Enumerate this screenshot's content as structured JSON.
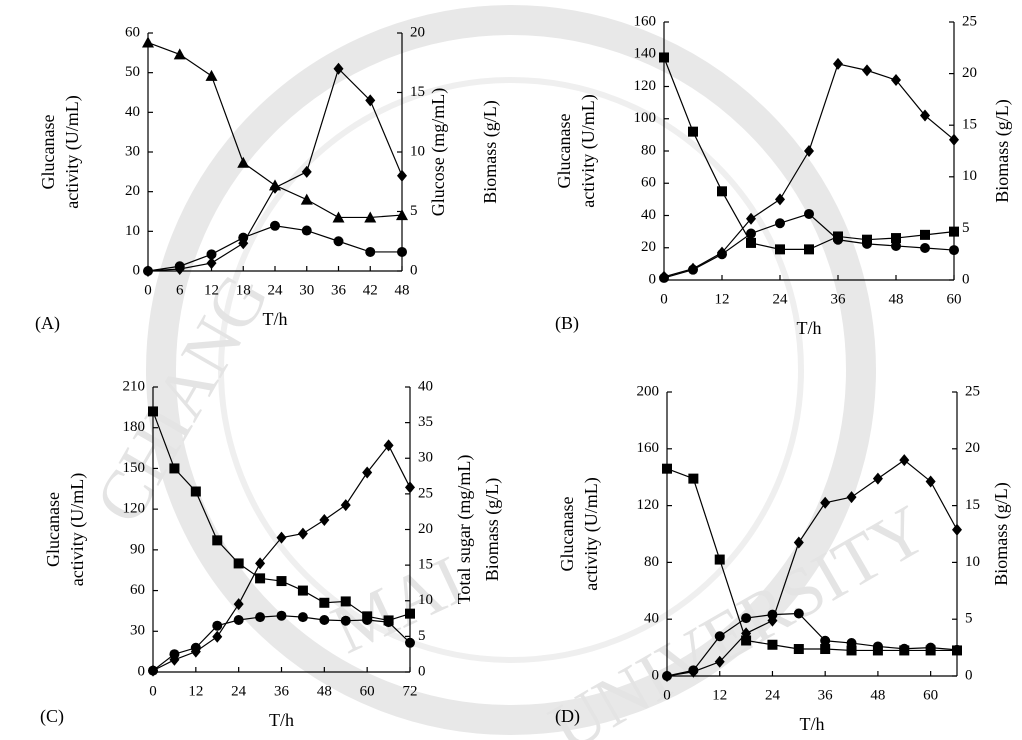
{
  "watermark": [
    "CHIANG",
    "MAI",
    "UNIVERSITY"
  ],
  "chart_data": [
    {
      "type": "line",
      "panel": "(A)",
      "xlabel": "T/h",
      "ylabel": [
        "Glucanase",
        "activity (U/mL)"
      ],
      "y2label": [
        "Glucose (mg/mL)",
        "Biomass (g/L)"
      ],
      "x": [
        0,
        6,
        12,
        18,
        24,
        30,
        36,
        42,
        48
      ],
      "xlim": [
        0,
        48
      ],
      "xticks": [
        0,
        6,
        12,
        18,
        24,
        30,
        36,
        42,
        48
      ],
      "ylim": [
        0,
        60
      ],
      "yticks": [
        0,
        10,
        20,
        30,
        40,
        50,
        60
      ],
      "y2lim": [
        0,
        20
      ],
      "y2ticks": [
        0,
        5,
        10,
        15,
        20
      ],
      "series": [
        {
          "marker": "diamond",
          "color": "#000000",
          "values": [
            0,
            0.5,
            2,
            7,
            21,
            25,
            51,
            43,
            24
          ]
        },
        {
          "marker": "triangle",
          "color": "#000000",
          "axis": "y2",
          "values": [
            19.2,
            18.2,
            16.4,
            9.1,
            7.2,
            6.0,
            4.5,
            4.5,
            4.7
          ]
        },
        {
          "marker": "circle",
          "color": "#000000",
          "axis": "y2",
          "values": [
            0,
            0.4,
            1.4,
            2.8,
            3.8,
            3.4,
            2.5,
            1.6,
            1.6
          ]
        }
      ]
    },
    {
      "type": "line",
      "panel": "(B)",
      "xlabel": "T/h",
      "ylabel": [
        "Glucanase",
        "activity (U/mL)"
      ],
      "y2label": [
        "Biomass (g/L)"
      ],
      "x": [
        0,
        6,
        12,
        18,
        24,
        30,
        36,
        42,
        48,
        54,
        60
      ],
      "xlim": [
        0,
        60
      ],
      "xticks": [
        0,
        12,
        24,
        36,
        48,
        60
      ],
      "ylim": [
        0,
        160
      ],
      "yticks": [
        0,
        20,
        40,
        60,
        80,
        100,
        120,
        140,
        160
      ],
      "y2lim": [
        0,
        25
      ],
      "y2ticks": [
        0,
        5,
        10,
        15,
        20,
        25
      ],
      "series": [
        {
          "marker": "square",
          "color": "#000000",
          "values": [
            138,
            92,
            55,
            23,
            19,
            19,
            27,
            25,
            26,
            28,
            30
          ]
        },
        {
          "marker": "diamond",
          "color": "#000000",
          "values": [
            2,
            7,
            17,
            38,
            50,
            80,
            134,
            130,
            124,
            102,
            87
          ]
        },
        {
          "marker": "circle",
          "color": "#000000",
          "axis": "y2",
          "values": [
            0.2,
            1.0,
            2.5,
            4.5,
            5.5,
            6.4,
            3.9,
            3.5,
            3.3,
            3.1,
            2.9
          ]
        }
      ]
    },
    {
      "type": "line",
      "panel": "(C)",
      "xlabel": "T/h",
      "ylabel": [
        "Glucanase",
        "activity (U/mL)"
      ],
      "y2label": [
        "Total sugar (mg/mL)",
        "Biomass (g/L)"
      ],
      "x": [
        0,
        6,
        12,
        18,
        24,
        30,
        36,
        42,
        48,
        54,
        60,
        66,
        72
      ],
      "xlim": [
        0,
        72
      ],
      "xticks": [
        0,
        12,
        24,
        36,
        48,
        60,
        72
      ],
      "ylim": [
        0,
        210
      ],
      "yticks": [
        0,
        30,
        60,
        90,
        120,
        150,
        180,
        210
      ],
      "y2lim": [
        0,
        40
      ],
      "y2ticks": [
        0,
        5,
        10,
        15,
        20,
        25,
        30,
        35,
        40
      ],
      "series": [
        {
          "marker": "square",
          "color": "#000000",
          "values": [
            192,
            150,
            133,
            97,
            80,
            69,
            67,
            60,
            51,
            52,
            41,
            38,
            43
          ]
        },
        {
          "marker": "diamond",
          "color": "#000000",
          "values": [
            1,
            9,
            15,
            26,
            50,
            80,
            99,
            102,
            112,
            123,
            147,
            167,
            136
          ]
        },
        {
          "marker": "circle",
          "color": "#000000",
          "axis": "y2",
          "values": [
            0.2,
            2.5,
            3.4,
            6.5,
            7.3,
            7.7,
            7.9,
            7.7,
            7.3,
            7.2,
            7.3,
            7.0,
            4.1
          ]
        }
      ]
    },
    {
      "type": "line",
      "panel": "(D)",
      "xlabel": "T/h",
      "ylabel": [
        "Glucanase",
        "activity (U/mL)"
      ],
      "y2label": [
        "Biomass (g/L)"
      ],
      "x": [
        0,
        6,
        12,
        18,
        24,
        30,
        36,
        42,
        48,
        54,
        60,
        66
      ],
      "xlim": [
        0,
        66
      ],
      "xticks": [
        0,
        12,
        24,
        36,
        48,
        60
      ],
      "ylim": [
        0,
        200
      ],
      "yticks": [
        0,
        40,
        80,
        120,
        160,
        200
      ],
      "y2lim": [
        0,
        25
      ],
      "y2ticks": [
        0,
        5,
        10,
        15,
        20,
        25
      ],
      "series": [
        {
          "marker": "square",
          "color": "#000000",
          "values": [
            146,
            139,
            82,
            25,
            22,
            19,
            19,
            18,
            18,
            18,
            18,
            18
          ]
        },
        {
          "marker": "diamond",
          "color": "#000000",
          "values": [
            0,
            3,
            10,
            30,
            39,
            94,
            122,
            126,
            139,
            152,
            137,
            103
          ]
        },
        {
          "marker": "circle",
          "color": "#000000",
          "axis": "y2",
          "values": [
            0,
            0.5,
            3.5,
            5.1,
            5.4,
            5.5,
            3.1,
            2.9,
            2.6,
            2.4,
            2.5,
            2.3
          ]
        }
      ]
    }
  ]
}
